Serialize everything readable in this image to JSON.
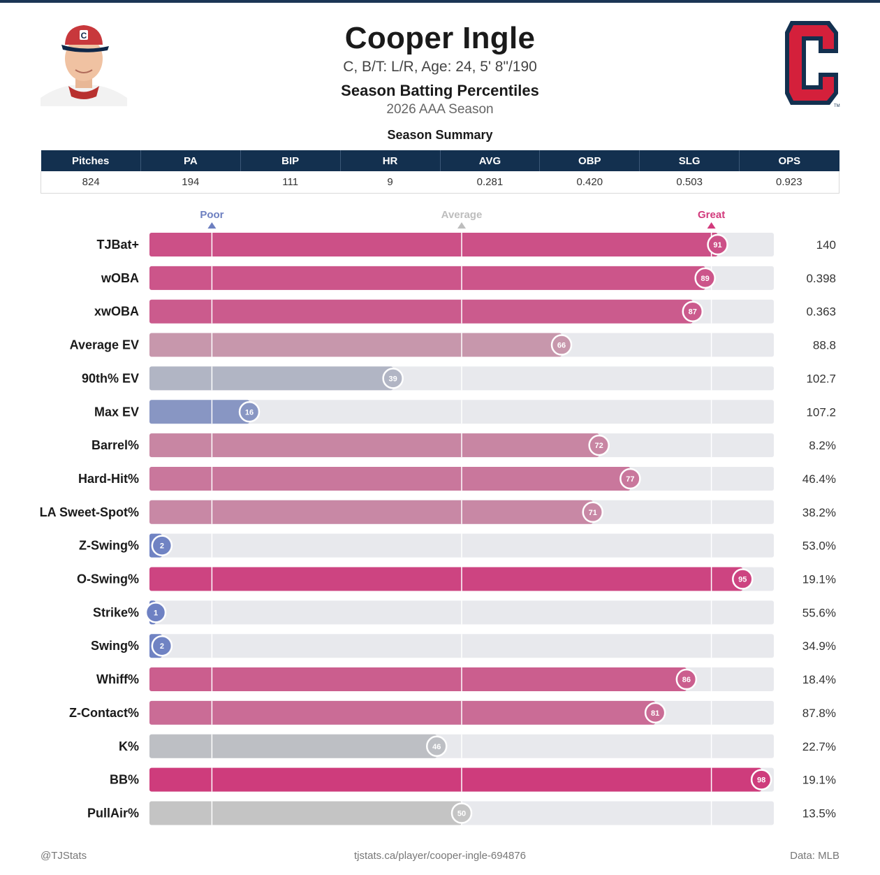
{
  "header": {
    "name": "Cooper Ingle",
    "bio": "C, B/T: L/R, Age: 24, 5' 8\"/190",
    "chart_title": "Season Batting Percentiles",
    "season": "2026 AAA Season",
    "logo_letter": "C"
  },
  "summary": {
    "title": "Season Summary",
    "columns": [
      "Pitches",
      "PA",
      "BIP",
      "HR",
      "AVG",
      "OBP",
      "SLG",
      "OPS"
    ],
    "values": [
      "824",
      "194",
      "111",
      "9",
      "0.281",
      "0.420",
      "0.503",
      "0.923"
    ]
  },
  "chart_data": {
    "type": "bar",
    "orientation": "horizontal",
    "xlim": [
      0,
      100
    ],
    "reference_markers": [
      {
        "label": "Poor",
        "percentile": 10,
        "color": "#6d7fc0"
      },
      {
        "label": "Average",
        "percentile": 50,
        "color": "#bdbdbd"
      },
      {
        "label": "Great",
        "percentile": 90,
        "color": "#d23a7c"
      }
    ],
    "categories": [
      "TJBat+",
      "wOBA",
      "xwOBA",
      "Average EV",
      "90th% EV",
      "Max EV",
      "Barrel%",
      "Hard-Hit%",
      "LA Sweet-Spot%",
      "Z-Swing%",
      "O-Swing%",
      "Strike%",
      "Swing%",
      "Whiff%",
      "Z-Contact%",
      "K%",
      "BB%",
      "PullAir%"
    ],
    "percentiles": [
      91,
      89,
      87,
      66,
      39,
      16,
      72,
      77,
      71,
      2,
      95,
      1,
      2,
      86,
      81,
      46,
      98,
      50
    ],
    "stat_values": [
      "140",
      "0.398",
      "0.363",
      "88.8",
      "102.7",
      "107.2",
      "8.2%",
      "46.4%",
      "38.2%",
      "53.0%",
      "19.1%",
      "55.6%",
      "34.9%",
      "18.4%",
      "87.8%",
      "22.7%",
      "19.1%",
      "13.5%"
    ]
  },
  "footer": {
    "left": "@TJStats",
    "center": "tjstats.ca/player/cooper-ingle-694876",
    "right": "Data: MLB"
  }
}
